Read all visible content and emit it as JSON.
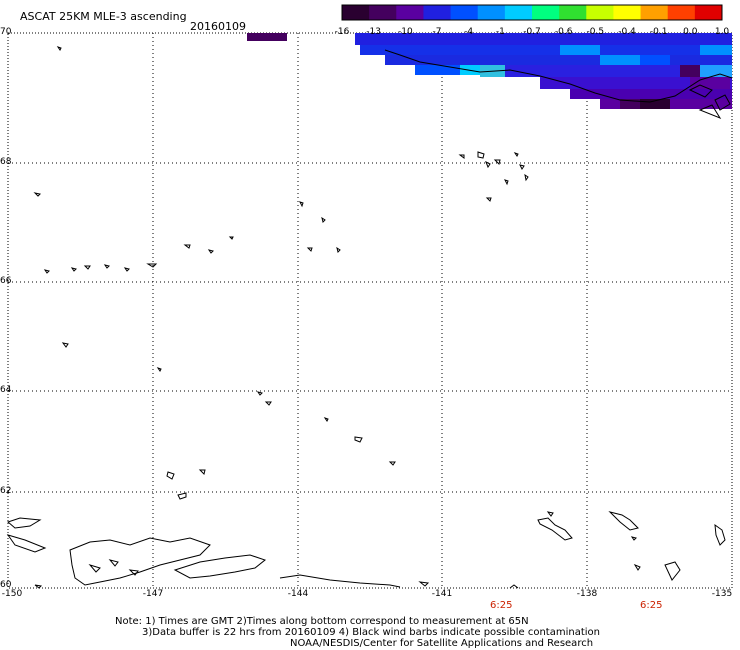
{
  "header": {
    "title": "ASCAT 25KM MLE-3 ascending",
    "date": "20160109"
  },
  "colorbar": {
    "labels": [
      "-16",
      "-13",
      "-10",
      "-7",
      "-4",
      "-1",
      "-0.7",
      "-0.6",
      "-0.5",
      "-0.4",
      "-0.1",
      "0.0",
      "1.0"
    ],
    "colors": [
      "#2a0030",
      "#44005e",
      "#5a00a0",
      "#2020e0",
      "#0050ff",
      "#0090ff",
      "#00ccff",
      "#00ff80",
      "#30e030",
      "#c8ff00",
      "#ffff00",
      "#ffa000",
      "#ff4000",
      "#e00000"
    ]
  },
  "axes": {
    "lat_labels": [
      "70",
      "68",
      "66",
      "64",
      "62",
      "60"
    ],
    "lon_labels": [
      "-150",
      "-147",
      "-144",
      "-141",
      "-138",
      "-135"
    ]
  },
  "times": [
    "6:25",
    "6:25"
  ],
  "notes": {
    "line1": "Note: 1) Times are GMT 2)Times along bottom correspond to measurement at 65N",
    "line2": "3)Data buffer is 22 hrs from 20160109 4) Black wind barbs indicate possible contamination",
    "line3": "NOAA/NESDIS/Center for Satellite Applications and Research"
  }
}
